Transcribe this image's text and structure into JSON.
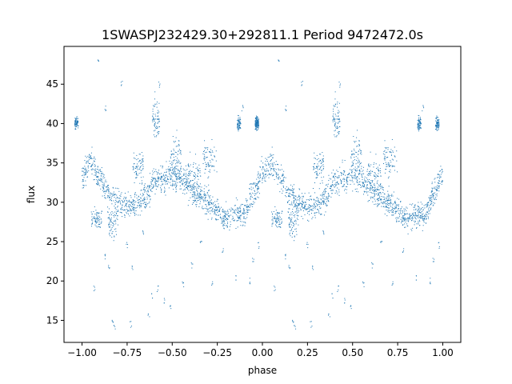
{
  "chart_data": {
    "type": "scatter",
    "title": "1SWASPJ232429.30+292811.1 Period 9472472.0s",
    "xlabel": "phase",
    "ylabel": "flux",
    "xlim": [
      -1.1,
      1.1
    ],
    "ylim": [
      12.2,
      49.8
    ],
    "x_ticks": [
      -1.0,
      -0.75,
      -0.5,
      -0.25,
      0.0,
      0.25,
      0.5,
      0.75,
      1.0
    ],
    "x_tick_labels": [
      "−1.00",
      "−0.75",
      "−0.50",
      "−0.25",
      "0.00",
      "0.25",
      "0.50",
      "0.75",
      "1.00"
    ],
    "y_ticks": [
      15,
      20,
      25,
      30,
      35,
      40,
      45
    ],
    "y_tick_labels": [
      "15",
      "20",
      "25",
      "30",
      "35",
      "40",
      "45"
    ],
    "grid": false,
    "legend": "none",
    "point_color": "#1f77b4",
    "phase_curve": {
      "description_points_phase": [
        0.0,
        0.05,
        0.1,
        0.15,
        0.2,
        0.25,
        0.3,
        0.35,
        0.4,
        0.45,
        0.5,
        0.55,
        0.6,
        0.65,
        0.7,
        0.75,
        0.8,
        0.85,
        0.9,
        0.95,
        1.0
      ],
      "flux": [
        33.5,
        35.0,
        33.0,
        31.0,
        30.0,
        29.5,
        29.5,
        30.5,
        32.5,
        33.0,
        33.5,
        33.0,
        31.5,
        31.0,
        30.0,
        29.0,
        28.0,
        28.5,
        28.5,
        31.0,
        33.5
      ],
      "scatter_width": 1.2
    },
    "point_clusters": [
      {
        "x": 0.41,
        "y": 40.5,
        "spread_x": 0.02,
        "spread_y": 2.0
      },
      {
        "x": 0.52,
        "y": 36.0,
        "spread_x": 0.03,
        "spread_y": 2.5
      },
      {
        "x": 0.31,
        "y": 34.5,
        "spread_x": 0.03,
        "spread_y": 1.5
      },
      {
        "x": 0.17,
        "y": 27.5,
        "spread_x": 0.03,
        "spread_y": 1.5
      },
      {
        "x": 0.08,
        "y": 28.0,
        "spread_x": 0.03,
        "spread_y": 1.2
      },
      {
        "x": -0.03,
        "y": 40.0,
        "spread_x": 0.01,
        "spread_y": 0.7
      },
      {
        "x": 0.87,
        "y": 40.0,
        "spread_x": 0.01,
        "spread_y": 0.7
      },
      {
        "x": 0.97,
        "y": 40.0,
        "spread_x": 0.01,
        "spread_y": 0.7
      },
      {
        "x": 0.71,
        "y": 35.5,
        "spread_x": 0.04,
        "spread_y": 2.0
      },
      {
        "x": 0.62,
        "y": 33.5,
        "spread_x": 0.04,
        "spread_y": 2.0
      }
    ],
    "outliers": [
      [
        0.09,
        48.2
      ],
      [
        0.22,
        45.0
      ],
      [
        0.43,
        45.0
      ],
      [
        0.13,
        42.0
      ],
      [
        0.89,
        42.0
      ],
      [
        0.07,
        19.0
      ],
      [
        0.17,
        15.0
      ],
      [
        0.18,
        14.3
      ],
      [
        0.37,
        15.5
      ],
      [
        0.46,
        17.5
      ],
      [
        0.13,
        23.0
      ],
      [
        0.28,
        21.5
      ],
      [
        0.42,
        19.0
      ],
      [
        0.56,
        19.5
      ],
      [
        0.61,
        22.0
      ],
      [
        0.72,
        19.5
      ],
      [
        0.85,
        20.5
      ],
      [
        0.93,
        20.0
      ],
      [
        0.95,
        22.5
      ],
      [
        0.78,
        24.0
      ],
      [
        0.25,
        24.5
      ],
      [
        0.34,
        26.0
      ],
      [
        0.49,
        16.5
      ],
      [
        0.66,
        25.0
      ],
      [
        0.39,
        18.0
      ],
      [
        0.15,
        21.8
      ],
      [
        0.27,
        14.5
      ],
      [
        0.98,
        24.5
      ]
    ]
  }
}
